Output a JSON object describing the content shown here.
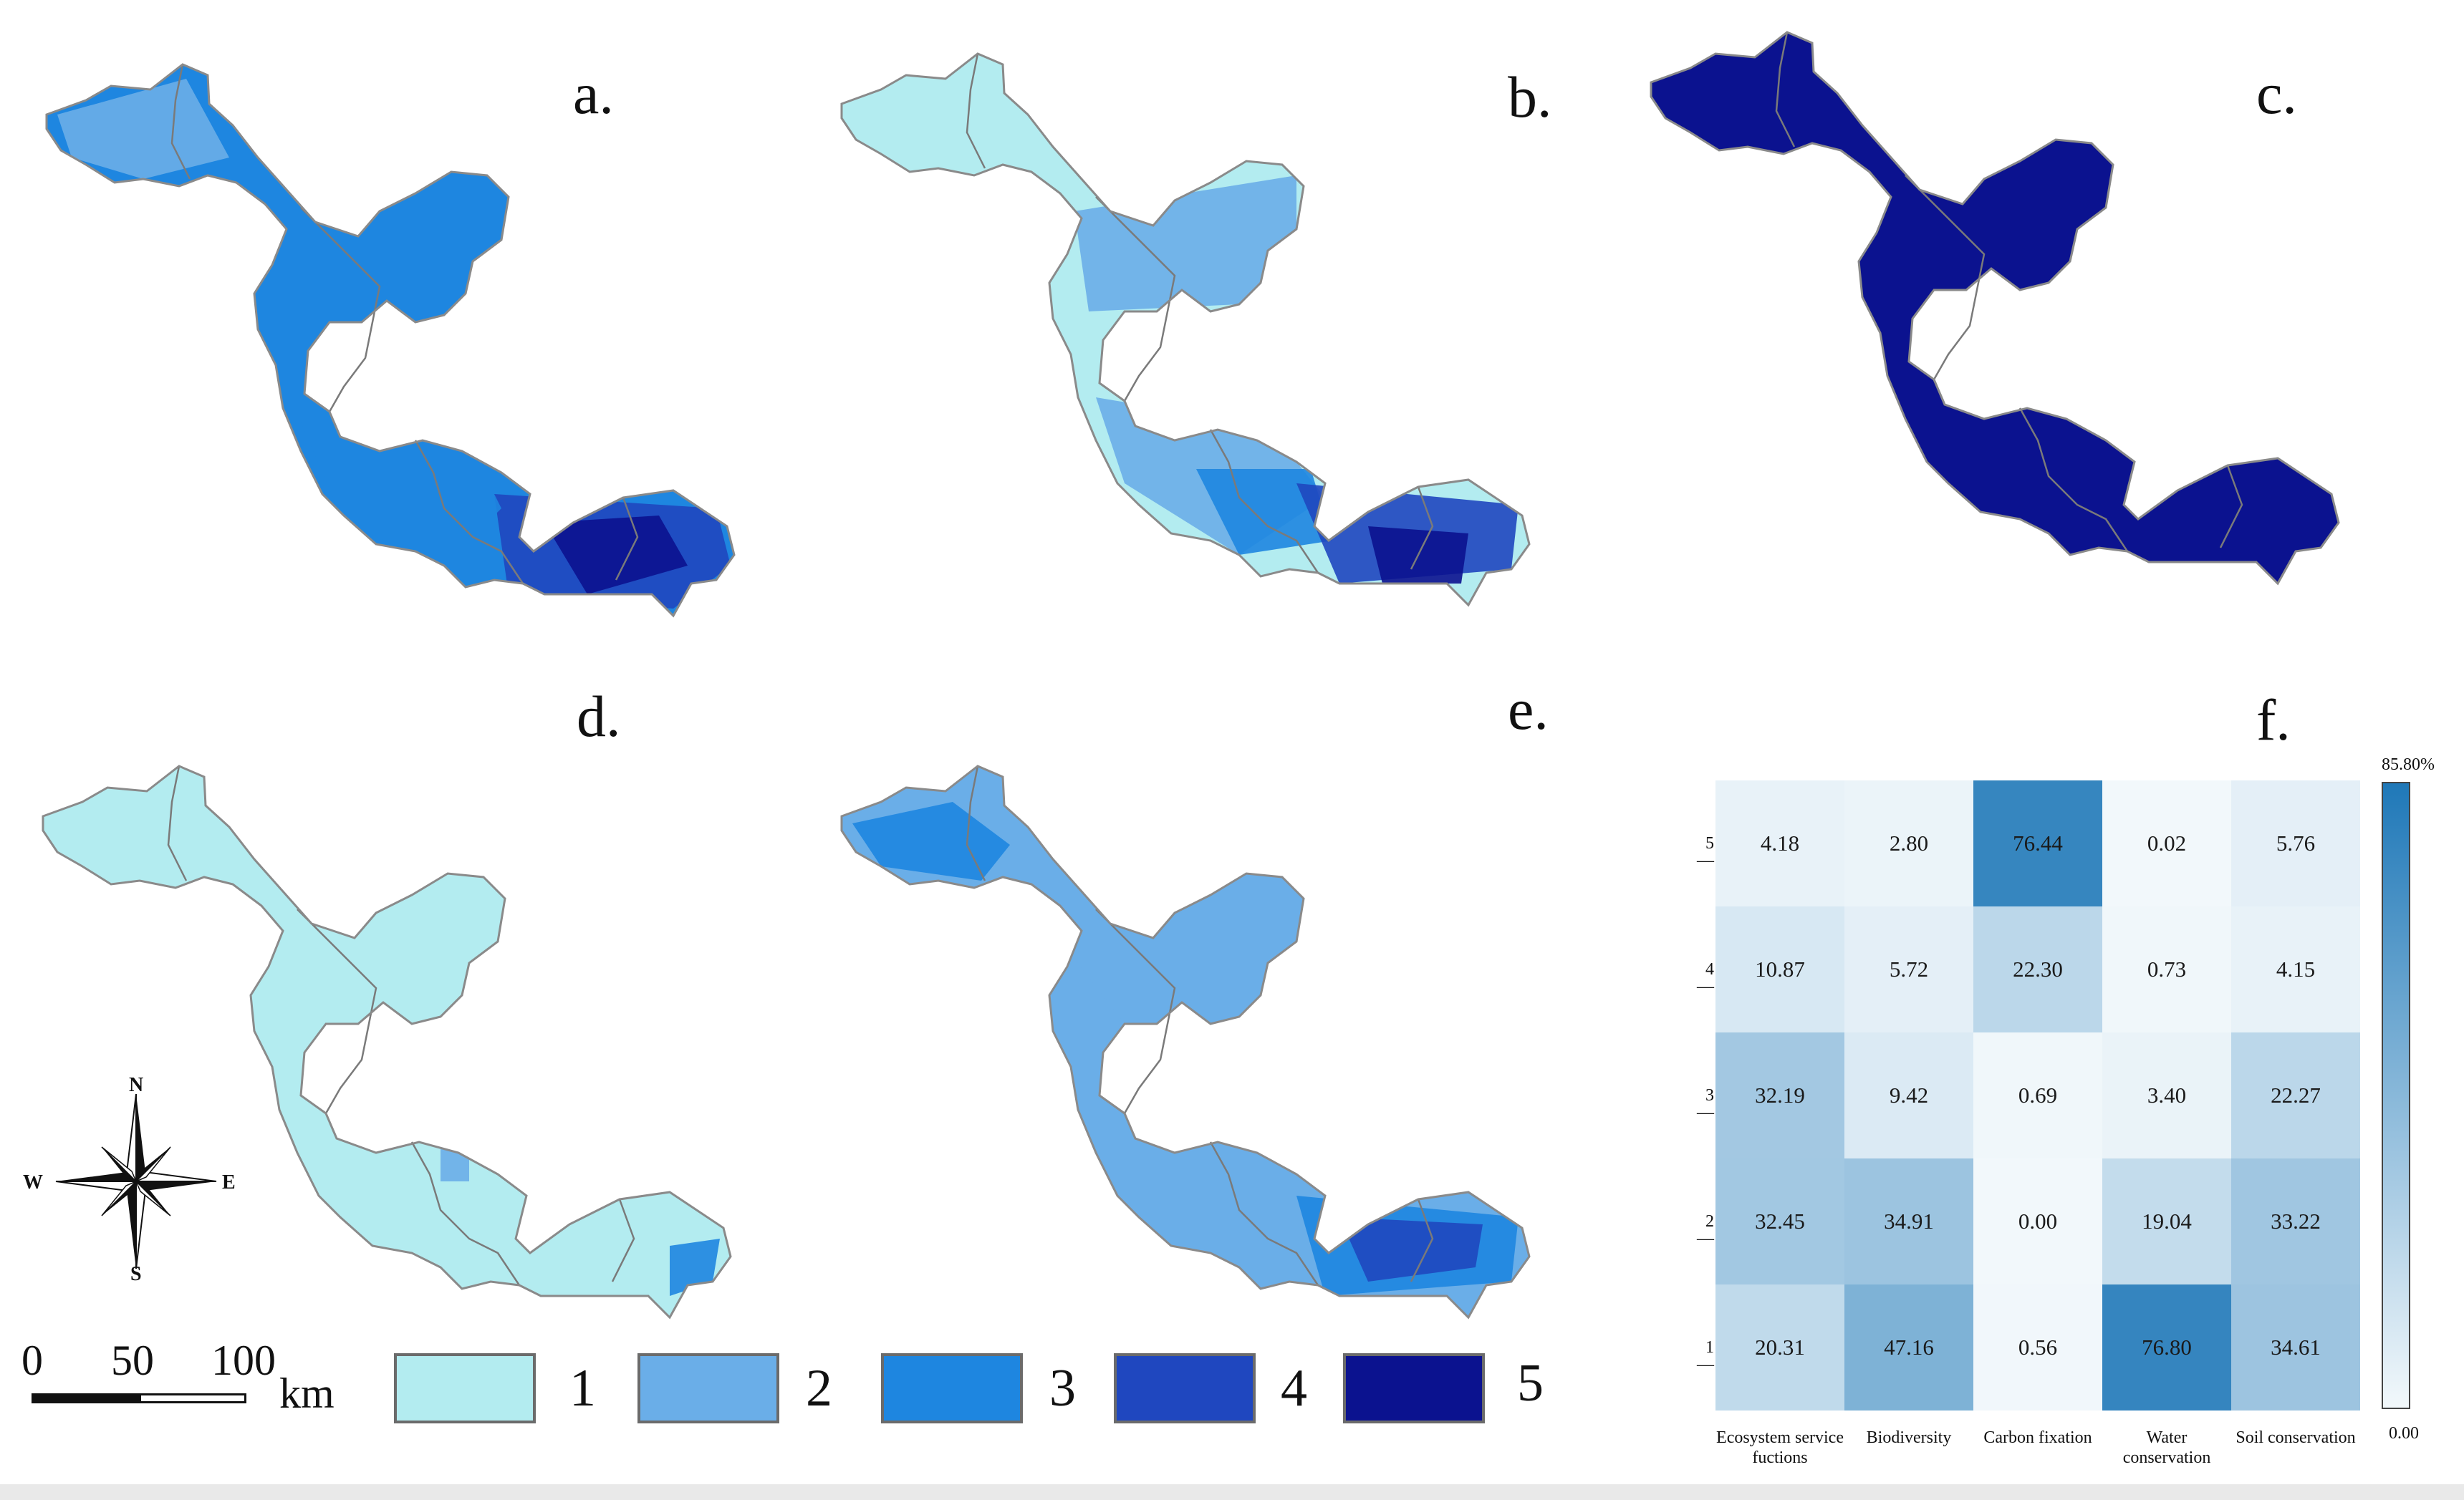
{
  "panels": {
    "a": "a.",
    "b": "b.",
    "c": "c.",
    "d": "d.",
    "e": "e.",
    "f": "f."
  },
  "maps": [
    {
      "panel": "a",
      "shade_level": 3
    },
    {
      "panel": "b",
      "shade_level": 1
    },
    {
      "panel": "c",
      "shade_level": 5
    },
    {
      "panel": "d",
      "shade_level": 1
    },
    {
      "panel": "e",
      "shade_level": 2
    }
  ],
  "legend": {
    "items": [
      {
        "label": "1",
        "color": "#b3ecf0"
      },
      {
        "label": "2",
        "color": "#6aaee8"
      },
      {
        "label": "3",
        "color": "#1e86e0"
      },
      {
        "label": "4",
        "color": "#1f47bf"
      },
      {
        "label": "5",
        "color": "#0b128f"
      }
    ]
  },
  "scale_bar": {
    "ticks": [
      "0",
      "50",
      "100"
    ],
    "unit": "km"
  },
  "compass": {
    "n": "N",
    "s": "S",
    "e": "E",
    "w": "W",
    "icon": "north-arrow-icon"
  },
  "chart_data": {
    "type": "heatmap",
    "x_labels": [
      "Ecosystem service fuctions",
      "Biodiversity",
      "Carbon fixation",
      "Water conservation",
      "Soil conservation"
    ],
    "y_labels": [
      "5",
      "4",
      "3",
      "2",
      "1"
    ],
    "values": [
      [
        "4.18",
        "2.80",
        "76.44",
        "0.02",
        "5.76"
      ],
      [
        "10.87",
        "5.72",
        "22.30",
        "0.73",
        "4.15"
      ],
      [
        "32.19",
        "9.42",
        "0.69",
        "3.40",
        "22.27"
      ],
      [
        "32.45",
        "34.91",
        "0.00",
        "19.04",
        "33.22"
      ],
      [
        "20.31",
        "47.16",
        "0.56",
        "76.80",
        "34.61"
      ]
    ],
    "colorbar": {
      "max_label": "85.80%",
      "min_label": "0.00",
      "vmin": 0,
      "vmax": 85.8
    },
    "colors": {
      "low": "#f2f8fb",
      "high": "#1f78b8"
    }
  }
}
